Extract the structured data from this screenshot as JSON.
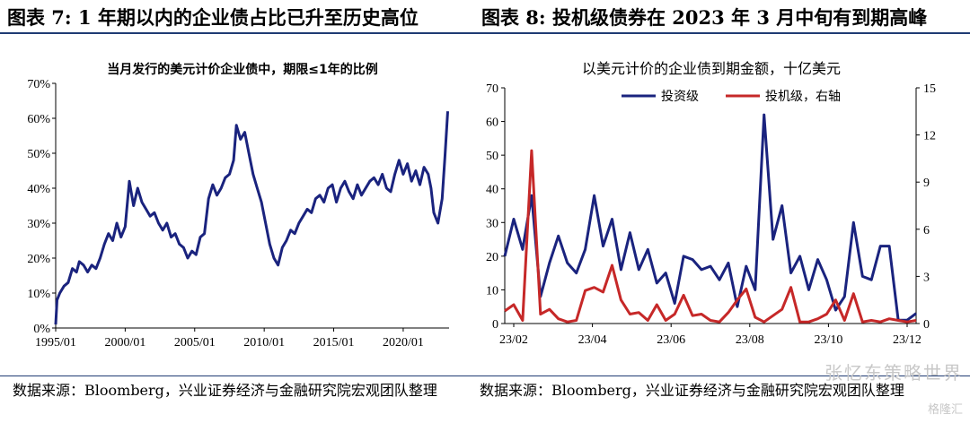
{
  "left": {
    "figure_title": "图表 7:  1 年期以内的企业债占比已升至历史高位",
    "source": "数据来源：Bloomberg，兴业证券经济与金融研究院宏观团队整理"
  },
  "right": {
    "figure_title": "图表 8:  投机级债券在 2023 年 3 月中旬有到期高峰",
    "source": "数据来源：Bloomberg，兴业证券经济与金融研究院宏观团队整理"
  },
  "watermark": "张忆东策略世界",
  "watermark2": "格隆汇",
  "chart_data": [
    {
      "type": "line",
      "title": "当月发行的美元计价企业债中，期限≤1年的比例",
      "y_ticks": [
        "0%",
        "10%",
        "20%",
        "30%",
        "40%",
        "50%",
        "60%",
        "70%"
      ],
      "ylim": [
        0,
        70
      ],
      "x_ticks": [
        "1995/01",
        "2000/01",
        "2005/01",
        "2010/01",
        "2015/01",
        "2020/01"
      ],
      "xlim": [
        1995.0,
        2023.3
      ],
      "color": "#1a237e",
      "series": [
        {
          "x": [
            1995.0,
            1995.1,
            1995.3,
            1995.6,
            1995.9,
            1996.2,
            1996.5,
            1996.7,
            1997.0,
            1997.3,
            1997.6,
            1997.9,
            1998.2,
            1998.5,
            1998.8,
            1999.1,
            1999.4,
            1999.7,
            2000.0,
            2000.3,
            2000.6,
            2000.9,
            2001.2,
            2001.5,
            2001.8,
            2002.1,
            2002.4,
            2002.7,
            2003.0,
            2003.3,
            2003.6,
            2003.9,
            2004.2,
            2004.5,
            2004.8,
            2005.1,
            2005.4,
            2005.7,
            2006.0,
            2006.3,
            2006.6,
            2006.9,
            2007.2,
            2007.5,
            2007.8,
            2008.0,
            2008.3,
            2008.6,
            2008.9,
            2009.2,
            2009.5,
            2009.8,
            2010.1,
            2010.4,
            2010.7,
            2011.0,
            2011.3,
            2011.6,
            2011.9,
            2012.2,
            2012.5,
            2012.8,
            2013.1,
            2013.4,
            2013.7,
            2014.0,
            2014.3,
            2014.6,
            2014.9,
            2015.2,
            2015.5,
            2015.8,
            2016.1,
            2016.4,
            2016.7,
            2017.0,
            2017.3,
            2017.6,
            2017.9,
            2018.2,
            2018.5,
            2018.8,
            2019.1,
            2019.4,
            2019.7,
            2020.0,
            2020.3,
            2020.6,
            2020.9,
            2021.2,
            2021.5,
            2021.8,
            2022.0,
            2022.2,
            2022.5,
            2022.8,
            2023.0,
            2023.2
          ],
          "values": [
            1,
            8,
            10,
            12,
            13,
            17,
            16,
            19,
            18,
            16,
            18,
            17,
            20,
            24,
            27,
            25,
            30,
            26,
            29,
            42,
            35,
            40,
            36,
            34,
            32,
            33,
            30,
            28,
            30,
            26,
            27,
            24,
            23,
            20,
            22,
            21,
            26,
            27,
            37,
            41,
            38,
            40,
            43,
            44,
            48,
            58,
            54,
            56,
            50,
            44,
            40,
            36,
            30,
            24,
            20,
            18,
            23,
            25,
            28,
            27,
            30,
            32,
            34,
            33,
            37,
            38,
            36,
            40,
            41,
            36,
            40,
            42,
            39,
            37,
            41,
            38,
            40,
            42,
            43,
            41,
            44,
            40,
            39,
            44,
            48,
            44,
            47,
            42,
            45,
            41,
            46,
            44,
            40,
            33,
            30,
            37,
            49,
            62
          ]
        }
      ]
    },
    {
      "type": "line",
      "title": "以美元计价的企业债到期金额，十亿美元",
      "y_ticks_left": [
        "0",
        "10",
        "20",
        "30",
        "40",
        "50",
        "60",
        "70"
      ],
      "ylim_left": [
        0,
        70
      ],
      "y_ticks_right": [
        "0",
        "3",
        "6",
        "9",
        "12",
        "15"
      ],
      "ylim_right": [
        0,
        15
      ],
      "x_ticks": [
        "23/02",
        "23/04",
        "23/06",
        "23/08",
        "23/10",
        "23/12"
      ],
      "legend_placement": "top",
      "series": [
        {
          "name": "投资级",
          "axis": "left",
          "color": "#1a237e",
          "values": [
            20,
            31,
            22,
            38,
            8,
            18,
            26,
            18,
            15,
            22,
            38,
            23,
            31,
            16,
            27,
            16,
            22,
            12,
            15,
            6,
            20,
            19,
            16,
            17,
            13,
            18,
            5,
            17,
            10,
            62,
            25,
            35,
            15,
            20,
            10,
            19,
            13,
            4,
            8,
            30,
            14,
            13,
            23,
            23,
            1,
            1,
            3
          ]
        },
        {
          "name": "投机级，右轴",
          "axis": "right",
          "color": "#c62828",
          "values": [
            0.8,
            1.2,
            0.2,
            11.0,
            0.6,
            0.9,
            0.3,
            0.1,
            0.2,
            2.1,
            2.3,
            2.0,
            3.7,
            1.5,
            0.6,
            0.7,
            0.2,
            1.2,
            0.2,
            0.6,
            1.8,
            0.5,
            0.6,
            0.2,
            0.1,
            0.7,
            1.5,
            2.2,
            0.4,
            0.1,
            0.5,
            0.9,
            2.3,
            0.1,
            0.1,
            0.3,
            0.6,
            1.5,
            0.2,
            1.9,
            0.1,
            0.2,
            0.1,
            0.3,
            0.2,
            0.1,
            0.2
          ]
        }
      ]
    }
  ]
}
